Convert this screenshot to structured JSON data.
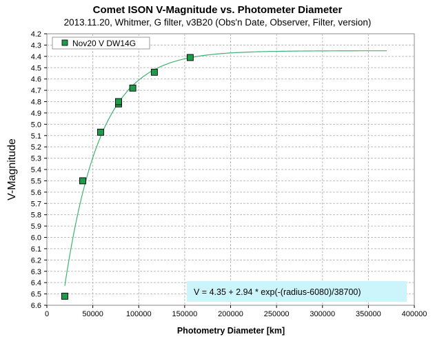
{
  "chart_data": {
    "type": "scatter",
    "title": "Comet ISON V-Magnitude vs. Photometer Diameter",
    "subtitle": "2013.11.20,  Whitmer, G filter,  v3B20 (Obs'n Date, Observer, Filter, version)",
    "xlabel": "Photometry Diameter  [km]",
    "ylabel": "V-Magnitude",
    "xlim": [
      0,
      400000
    ],
    "ylim": [
      4.2,
      6.6
    ],
    "y_inverted": true,
    "x_ticks": [
      0,
      50000,
      100000,
      150000,
      200000,
      250000,
      300000,
      350000,
      400000
    ],
    "y_ticks": [
      "4.2",
      "4.3",
      "4.4",
      "4.5",
      "4.6",
      "4.7",
      "4.8",
      "4.9",
      "5.0",
      "5.1",
      "5.2",
      "5.3",
      "5.4",
      "5.5",
      "5.6",
      "5.7",
      "5.8",
      "5.9",
      "6.0",
      "6.1",
      "6.2",
      "6.3",
      "6.4",
      "6.5",
      "6.6"
    ],
    "grid": true,
    "legend_position": "top-left",
    "series": [
      {
        "name": "Nov20 V DW14G",
        "marker": "square",
        "color": "#1e9a4a",
        "x": [
          19500,
          39000,
          58500,
          78000,
          78000,
          93500,
          117000,
          156000
        ],
        "y": [
          6.52,
          5.5,
          5.07,
          4.82,
          4.8,
          4.68,
          4.54,
          4.41
        ]
      }
    ],
    "fit": {
      "label": "V = 4.35  + 2.94  * exp(-(radius-6080)/38700)",
      "a": 4.35,
      "b": 2.94,
      "r0": 6080,
      "scale": 38700,
      "x_range": [
        19500,
        370000
      ],
      "color": "#3cb371"
    },
    "colors": {
      "fit_box": "#ccf5fb",
      "marker_fill": "#1e9a4a"
    }
  }
}
